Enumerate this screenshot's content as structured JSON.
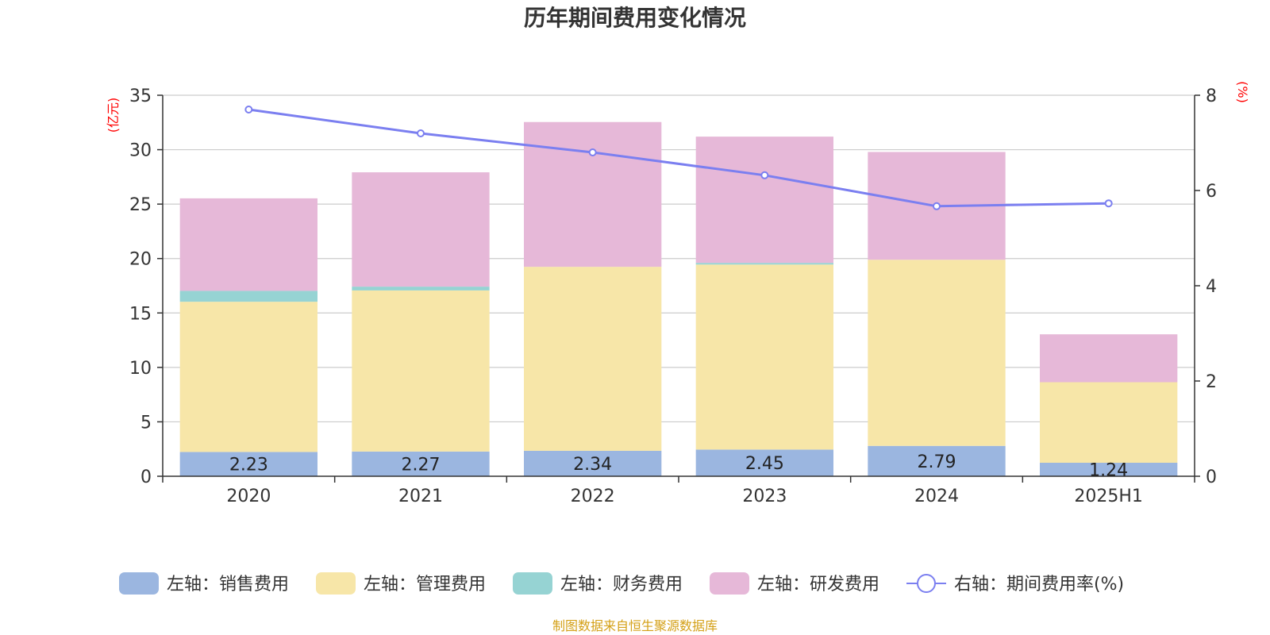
{
  "chart_data": {
    "type": "bar",
    "title": "历年期间费用变化情况",
    "categories": [
      "2020",
      "2021",
      "2022",
      "2023",
      "2024",
      "2025H1"
    ],
    "left_axis": {
      "unit": "(亿元)",
      "ylim": [
        0,
        35
      ],
      "ticks": [
        0,
        5,
        10,
        15,
        20,
        25,
        30,
        35
      ]
    },
    "right_axis": {
      "unit": "(%)",
      "ylim": [
        0,
        8
      ],
      "ticks": [
        0,
        2,
        4,
        6,
        8
      ]
    },
    "series": [
      {
        "name": "左轴：销售费用",
        "type": "bar",
        "stack": "total",
        "axis": "left",
        "color": "#9bb6e0",
        "values": [
          2.23,
          2.27,
          2.34,
          2.45,
          2.79,
          1.24
        ],
        "labels": [
          "2.23",
          "2.27",
          "2.34",
          "2.45",
          "2.79",
          "1.24"
        ]
      },
      {
        "name": "左轴：管理费用",
        "type": "bar",
        "stack": "total",
        "axis": "left",
        "color": "#f7e6a8",
        "values": [
          13.8,
          14.8,
          16.9,
          17.0,
          17.1,
          7.4
        ]
      },
      {
        "name": "左轴：财务费用",
        "type": "bar",
        "stack": "total",
        "axis": "left",
        "color": "#96d3d3",
        "values": [
          1.0,
          0.35,
          0.0,
          0.15,
          0.0,
          0.0
        ]
      },
      {
        "name": "左轴：研发费用",
        "type": "bar",
        "stack": "total",
        "axis": "left",
        "color": "#e6b8d8",
        "values": [
          8.5,
          10.5,
          13.3,
          11.6,
          9.9,
          4.4
        ]
      },
      {
        "name": "右轴：期间费用率(%)",
        "type": "line",
        "axis": "right",
        "color": "#7b7ff0",
        "values": [
          7.7,
          7.2,
          6.8,
          6.32,
          5.67,
          5.73
        ]
      }
    ],
    "grid": true,
    "legend_position": "bottom"
  },
  "source_note": "制图数据来自恒生聚源数据库",
  "colors": {
    "unit_text": "#ff0000",
    "source_text": "#d4a017",
    "axis": "#333333",
    "gridline": "#cccccc"
  }
}
